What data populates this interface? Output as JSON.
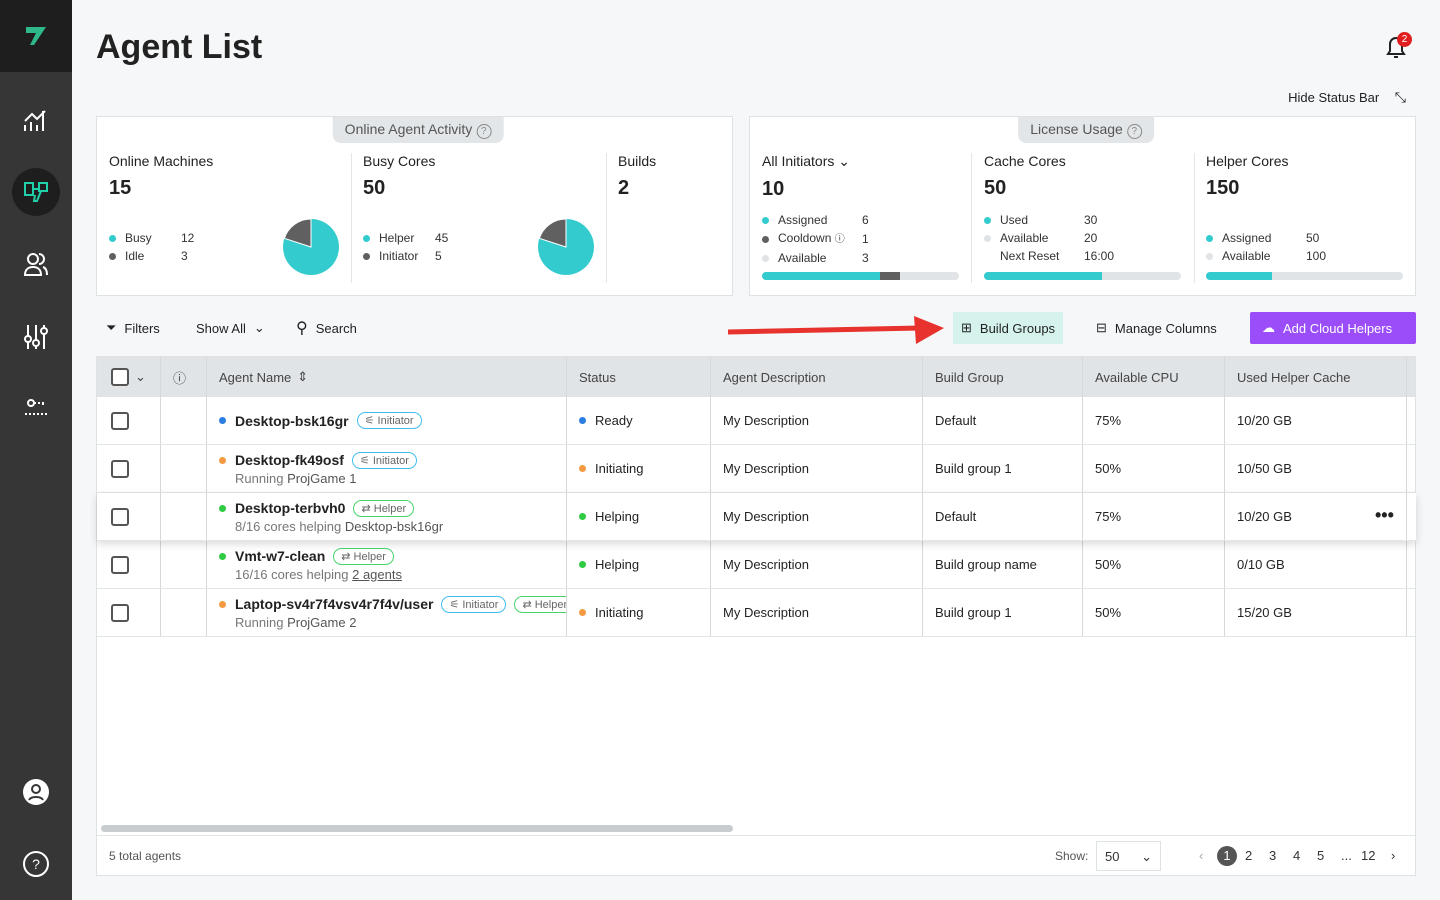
{
  "header": {
    "title": "Agent List",
    "notifications": "2",
    "hide_status_bar": "Hide Status Bar"
  },
  "sidebar": {
    "items": [
      "analytics-icon",
      "agents-icon",
      "users-icon",
      "settings-icon",
      "license-key-icon"
    ],
    "active": "agents-icon",
    "bottom": [
      "account-icon",
      "help-icon"
    ]
  },
  "activity": {
    "title": "Online Agent Activity",
    "machines": {
      "label": "Online Machines",
      "value": "15",
      "legend": [
        {
          "label": "Busy",
          "value": "12",
          "color": "#34cbcf"
        },
        {
          "label": "Idle",
          "value": "3",
          "color": "#606060"
        }
      ]
    },
    "cores": {
      "label": "Busy Cores",
      "value": "50",
      "legend": [
        {
          "label": "Helper",
          "value": "45",
          "color": "#34cbcf"
        },
        {
          "label": "Initiator",
          "value": "5",
          "color": "#606060"
        }
      ]
    },
    "builds": {
      "label": "Builds",
      "value": "2"
    }
  },
  "license": {
    "title": "License Usage",
    "initiators": {
      "label": "All Initiators",
      "value": "10",
      "legend": [
        {
          "label": "Assigned",
          "value": "6"
        },
        {
          "label": "Cooldown",
          "value": "1"
        },
        {
          "label": "Available",
          "value": "3"
        }
      ]
    },
    "cache": {
      "label": "Cache Cores",
      "value": "50",
      "legend": [
        {
          "label": "Used",
          "value": "30"
        },
        {
          "label": "Available",
          "value": "20"
        },
        {
          "label": "Next Reset",
          "value": "16:00"
        }
      ]
    },
    "helper": {
      "label": "Helper Cores",
      "value": "150",
      "legend": [
        {
          "label": "Assigned",
          "value": "50"
        },
        {
          "label": "Available",
          "value": "100"
        }
      ]
    }
  },
  "toolbar": {
    "filters": "Filters",
    "show": "Show All",
    "search": "Search",
    "build_groups": "Build Groups",
    "manage_columns": "Manage Columns",
    "add_cloud": "Add Cloud Helpers"
  },
  "table": {
    "columns": [
      "Agent Name",
      "Status",
      "Agent Description",
      "Build Group",
      "Available CPU",
      "Used Helper Cache"
    ],
    "rows": [
      {
        "name": "Desktop-bsk16gr",
        "dot": "#2a7de1",
        "tag": "Initiator",
        "sub1": "",
        "sub2": "",
        "status": "Ready",
        "desc": "My Description",
        "group": "Default",
        "cpu": "75%",
        "cache": "10/20 GB"
      },
      {
        "name": "Desktop-fk49osf",
        "dot": "#f59a42",
        "tag": "Initiator",
        "sub1": "Running",
        "sub2": "ProjGame 1",
        "status": "Initiating",
        "desc": "My Description",
        "group": "Build group 1",
        "cpu": "50%",
        "cache": "10/50 GB"
      },
      {
        "name": "Desktop-terbvh0",
        "dot": "#2ecc40",
        "tag": "Helper",
        "sub1": "8/16 cores helping",
        "sub2": "Desktop-bsk16gr",
        "status": "Helping",
        "desc": "My Description",
        "group": "Default",
        "cpu": "75%",
        "cache": "10/20 GB"
      },
      {
        "name": "Vmt-w7-clean",
        "dot": "#2ecc40",
        "tag": "Helper",
        "sub1": "16/16 cores helping",
        "sub2": "2 agents",
        "status": "Helping",
        "desc": "My Description",
        "group": "Build group name",
        "cpu": "50%",
        "cache": "0/10 GB"
      },
      {
        "name": "Laptop-sv4r7f4vsv4r7f4v/user",
        "dot": "#f59a42",
        "tag": "Initiator",
        "tag2": "Helper",
        "sub1": "Running",
        "sub2": "ProjGame 2",
        "status": "Initiating",
        "desc": "My Description",
        "group": "Build group 1",
        "cpu": "50%",
        "cache": "15/20 GB"
      }
    ]
  },
  "footer": {
    "total": "5 total agents",
    "show_label": "Show:",
    "page_size": "50",
    "pages": [
      "1",
      "2",
      "3",
      "4",
      "5",
      "...",
      "12"
    ],
    "current_page": "1"
  }
}
